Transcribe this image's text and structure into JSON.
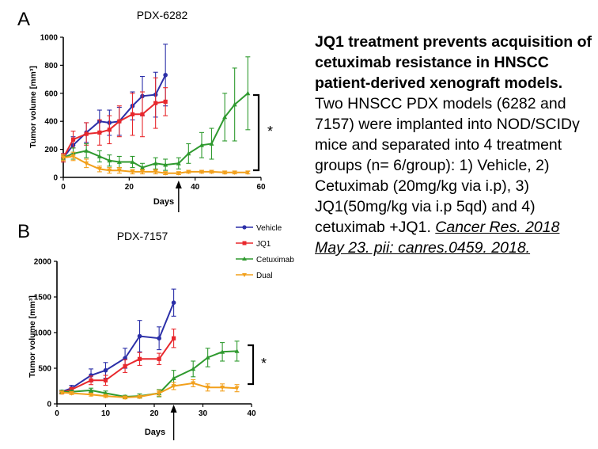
{
  "colors": {
    "vehicle": "#2b2fa8",
    "jq1": "#e8282d",
    "cetuximab": "#2f9a2f",
    "dual": "#f2a01c",
    "axis": "#000000"
  },
  "panels": {
    "a": {
      "letter": "A"
    },
    "b": {
      "letter": "B"
    }
  },
  "chart_data": [
    {
      "type": "line",
      "title": "PDX-6282",
      "xlabel": "Days",
      "ylabel": "Tumor volume [mm³]",
      "xlim": [
        0,
        60
      ],
      "ylim": [
        0,
        1000
      ],
      "xticks": [
        0,
        20,
        40,
        60
      ],
      "yticks": [
        0,
        200,
        400,
        600,
        800,
        1000
      ],
      "annotation": "*",
      "arrow_x": 35,
      "series": [
        {
          "name": "Vehicle",
          "color": "#2b2fa8",
          "x": [
            0,
            3,
            7,
            11,
            14,
            17,
            21,
            24,
            28,
            31
          ],
          "y": [
            140,
            230,
            320,
            400,
            390,
            400,
            510,
            580,
            590,
            730
          ],
          "err": [
            30,
            60,
            70,
            80,
            90,
            100,
            100,
            140,
            160,
            220
          ]
        },
        {
          "name": "JQ1",
          "color": "#e8282d",
          "x": [
            0,
            3,
            7,
            11,
            14,
            17,
            21,
            24,
            28,
            31
          ],
          "y": [
            140,
            270,
            310,
            320,
            340,
            400,
            450,
            450,
            530,
            540
          ],
          "err": [
            30,
            60,
            80,
            90,
            100,
            110,
            150,
            160,
            180,
            100
          ]
        },
        {
          "name": "Cetuximab",
          "color": "#2f9a2f",
          "x": [
            0,
            3,
            7,
            11,
            14,
            17,
            21,
            24,
            28,
            31,
            35,
            38,
            42,
            45,
            49,
            52,
            56
          ],
          "y": [
            140,
            170,
            190,
            150,
            120,
            110,
            110,
            70,
            100,
            90,
            100,
            170,
            230,
            240,
            430,
            520,
            600
          ],
          "err": [
            20,
            40,
            50,
            40,
            40,
            40,
            40,
            30,
            40,
            40,
            40,
            70,
            90,
            110,
            170,
            260,
            260
          ]
        },
        {
          "name": "Dual",
          "color": "#f2a01c",
          "x": [
            0,
            3,
            7,
            11,
            14,
            17,
            21,
            24,
            28,
            31,
            35,
            38,
            42,
            45,
            49,
            52,
            56
          ],
          "y": [
            140,
            150,
            100,
            60,
            50,
            50,
            40,
            40,
            40,
            30,
            30,
            40,
            40,
            40,
            35,
            35,
            35
          ],
          "err": [
            20,
            30,
            30,
            20,
            20,
            20,
            15,
            15,
            15,
            10,
            10,
            10,
            10,
            10,
            10,
            10,
            10
          ]
        }
      ]
    },
    {
      "type": "line",
      "title": "PDX-7157",
      "xlabel": "Days",
      "ylabel": "Tumor volume [mm³]",
      "xlim": [
        0,
        40
      ],
      "ylim": [
        0,
        2000
      ],
      "xticks": [
        0,
        10,
        20,
        30,
        40
      ],
      "yticks": [
        0,
        500,
        1000,
        1500,
        2000
      ],
      "annotation": "*",
      "arrow_x": 24,
      "legend": {
        "position": "top-right",
        "entries": [
          "Vehicle",
          "JQ1",
          "Cetuximab",
          "Dual"
        ]
      },
      "series": [
        {
          "name": "Vehicle",
          "color": "#2b2fa8",
          "x": [
            1,
            3,
            7,
            10,
            14,
            17,
            21,
            24
          ],
          "y": [
            170,
            220,
            400,
            470,
            640,
            950,
            920,
            1420
          ],
          "err": [
            20,
            40,
            90,
            110,
            140,
            220,
            160,
            190
          ]
        },
        {
          "name": "JQ1",
          "color": "#e8282d",
          "x": [
            1,
            3,
            7,
            10,
            14,
            17,
            21,
            24
          ],
          "y": [
            160,
            200,
            330,
            330,
            530,
            630,
            630,
            920
          ],
          "err": [
            20,
            30,
            60,
            70,
            90,
            90,
            80,
            130
          ]
        },
        {
          "name": "Cetuximab",
          "color": "#2f9a2f",
          "x": [
            1,
            3,
            7,
            10,
            14,
            17,
            21,
            24,
            28,
            31,
            34,
            37
          ],
          "y": [
            170,
            170,
            190,
            150,
            100,
            110,
            150,
            360,
            490,
            650,
            730,
            740
          ],
          "err": [
            20,
            20,
            30,
            30,
            20,
            30,
            50,
            110,
            110,
            130,
            130,
            140
          ]
        },
        {
          "name": "Dual",
          "color": "#f2a01c",
          "x": [
            1,
            3,
            7,
            10,
            14,
            17,
            21,
            24,
            28,
            31,
            34,
            37
          ],
          "y": [
            160,
            150,
            130,
            110,
            90,
            100,
            150,
            250,
            290,
            230,
            230,
            220
          ],
          "err": [
            20,
            20,
            20,
            20,
            20,
            20,
            40,
            50,
            50,
            50,
            50,
            50
          ]
        }
      ]
    }
  ],
  "caption": {
    "heading": "JQ1 treatment prevents acquisition of cetuximab resistance in HNSCC patient-derived xenograft models.",
    "body": "Two HNSCC PDX models (6282 and 7157) were implanted into NOD/SCIDγ mice and separated into 4 treatment groups (n= 6/group): 1) Vehicle, 2) Cetuximab (20mg/kg via i.p), 3) JQ1(50mg/kg via i.p 5qd) and 4) cetuximab +JQ1.",
    "citation": "Cancer Res. 2018 May 23. pii: canres.0459. 2018."
  }
}
